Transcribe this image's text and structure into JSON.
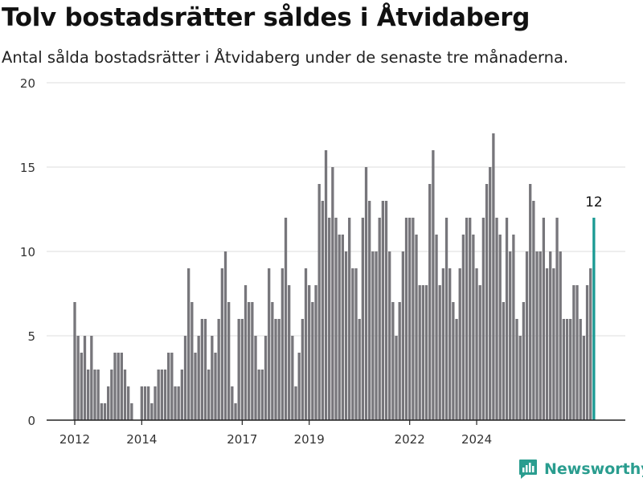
{
  "title": "Tolv bostadsrätter såldes i Åtvidaberg",
  "subtitle": "Antal sålda bostadsrätter i Åtvidaberg under de senaste tre månaderna.",
  "brand": {
    "name": "Newsworthy"
  },
  "colors": {
    "bar": "#77767b",
    "highlight": "#1a9a93",
    "grid": "#dddddd",
    "axis": "#222222",
    "brand": "#2a9d8f"
  },
  "chart_data": {
    "type": "bar",
    "title": "Tolv bostadsrätter såldes i Åtvidaberg",
    "subtitle": "Antal sålda bostadsrätter i Åtvidaberg under de senaste tre månaderna.",
    "xlabel": "",
    "ylabel": "",
    "ylim": [
      0,
      20
    ],
    "yticks": [
      0,
      5,
      10,
      15,
      20
    ],
    "xticks": [
      {
        "label": "2012",
        "index": 0
      },
      {
        "label": "2014",
        "index": 20
      },
      {
        "label": "2017",
        "index": 50
      },
      {
        "label": "2019",
        "index": 70
      },
      {
        "label": "2022",
        "index": 100
      },
      {
        "label": "2024",
        "index": 120
      }
    ],
    "grid": true,
    "annotation": {
      "text": "12"
    },
    "values": [
      7,
      5,
      4,
      5,
      3,
      5,
      3,
      3,
      1,
      1,
      2,
      3,
      4,
      4,
      4,
      3,
      2,
      1,
      0,
      0,
      2,
      2,
      2,
      1,
      2,
      3,
      3,
      3,
      4,
      4,
      2,
      2,
      3,
      5,
      9,
      7,
      4,
      5,
      6,
      6,
      3,
      5,
      4,
      6,
      9,
      10,
      7,
      2,
      1,
      6,
      6,
      8,
      7,
      7,
      5,
      3,
      3,
      5,
      9,
      7,
      6,
      6,
      9,
      12,
      8,
      5,
      2,
      4,
      6,
      9,
      8,
      7,
      8,
      14,
      13,
      16,
      12,
      15,
      12,
      11,
      11,
      10,
      12,
      9,
      9,
      6,
      12,
      15,
      13,
      10,
      10,
      12,
      13,
      13,
      10,
      7,
      5,
      7,
      10,
      12,
      12,
      12,
      11,
      8,
      8,
      8,
      14,
      16,
      11,
      8,
      9,
      12,
      9,
      7,
      6,
      9,
      11,
      12,
      12,
      11,
      9,
      8,
      12,
      14,
      15,
      17,
      12,
      11,
      7,
      12,
      10,
      11,
      6,
      5,
      7,
      10,
      14,
      13,
      10,
      10,
      12,
      9,
      10,
      9,
      12,
      10,
      6,
      6,
      6,
      8,
      8,
      6,
      5,
      8,
      9,
      12
    ]
  }
}
